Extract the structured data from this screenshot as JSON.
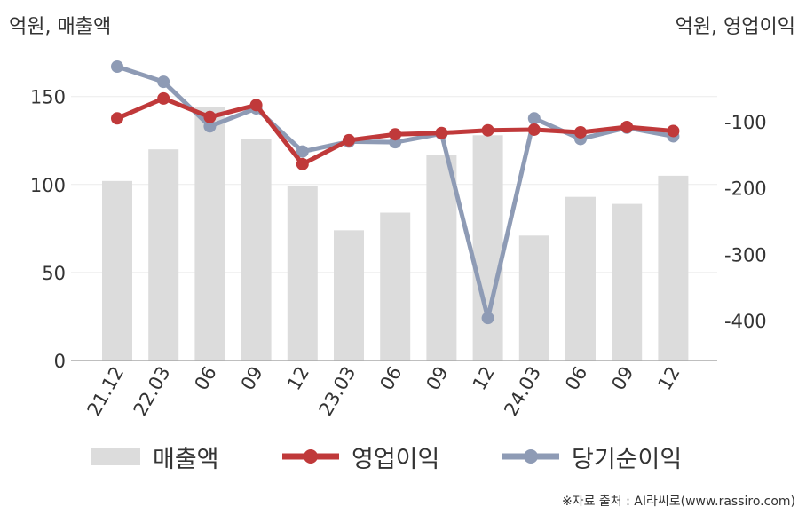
{
  "units": {
    "left": "억원, 매출액",
    "right": "억원, 영업이익"
  },
  "legend": {
    "revenue": "매출액",
    "op_profit": "영업이익",
    "net_profit": "당기순이익"
  },
  "source": "※자료 출처 : AI라씨로(www.rassiro.com)",
  "colors": {
    "revenue": "#dcdcdc",
    "op_profit": "#c0393a",
    "net_profit": "#8e9bb5",
    "grid": "#ebebeb",
    "axis": "#aaaaaa"
  },
  "chart_data": {
    "type": "bar+line",
    "categories": [
      "21.12",
      "22.03",
      "06",
      "09",
      "12",
      "23.03",
      "06",
      "09",
      "12",
      "24.03",
      "06",
      "09",
      "12"
    ],
    "left_axis": {
      "ticks": [
        0,
        50,
        100,
        150
      ],
      "ylim": [
        0,
        167
      ]
    },
    "right_axis": {
      "ticks": [
        -400,
        -300,
        -200,
        -100
      ],
      "ylim": [
        -460,
        -17
      ]
    },
    "series": [
      {
        "name": "매출액",
        "type": "bar",
        "axis": "left",
        "values": [
          102,
          120,
          144,
          126,
          99,
          74,
          84,
          117,
          128,
          71,
          93,
          89,
          105
        ]
      },
      {
        "name": "영업이익",
        "type": "line",
        "axis": "right",
        "values": [
          -95,
          -65,
          -93,
          -75,
          -164,
          -128,
          -119,
          -117,
          -113,
          -112,
          -116,
          -108,
          -114
        ]
      },
      {
        "name": "당기순이익",
        "type": "line",
        "axis": "right",
        "values": [
          -17,
          -40,
          -107,
          -80,
          -145,
          -130,
          -131,
          -118,
          -396,
          -95,
          -126,
          -109,
          -122
        ]
      }
    ],
    "grid": true,
    "legend_position": "bottom"
  }
}
